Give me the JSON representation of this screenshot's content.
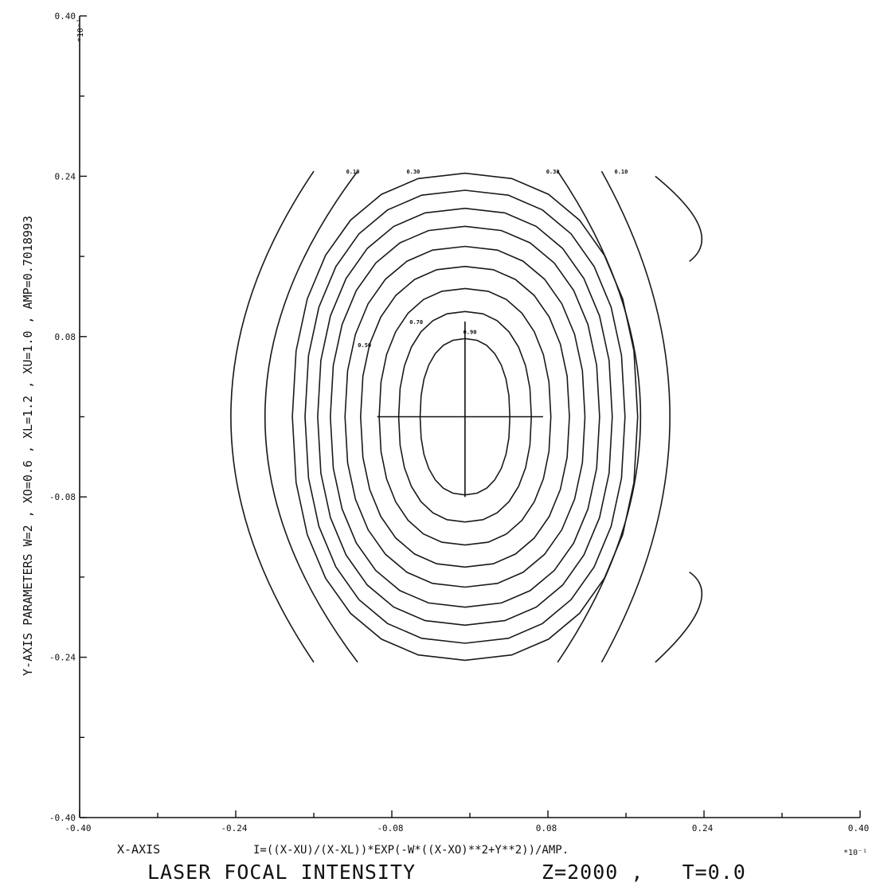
{
  "chart_data": {
    "type": "contour",
    "title": "LASER FOCAL INTENSITY",
    "title_params": "Z=2000 ,   T=0.0",
    "xlabel": "X-AXIS",
    "ylabel": "Y-AXIS PARAMETERS W=2 , XO=0.6 , XL=1.2 , XU=1.0 , AMP=0.7018993",
    "formula": "I=((X-XU)/(X-XL))*EXP(-W*((X-XO)**2+Y**2))/AMP.",
    "x_exponent": "*10⁻¹",
    "y_exponent": "*10⁻¹",
    "xlim": [
      -0.4,
      0.4
    ],
    "ylim": [
      -0.4,
      0.4
    ],
    "x_ticks": [
      -0.4,
      -0.24,
      -0.08,
      0.08,
      0.24,
      0.4
    ],
    "y_ticks": [
      -0.4,
      -0.24,
      -0.08,
      0.08,
      0.24,
      0.4
    ],
    "x_tick_labels": [
      "-0.40",
      "-0.24",
      "-0.08",
      "0.08",
      "0.24",
      "0.40"
    ],
    "y_tick_labels": [
      "-0.40",
      "-0.24",
      "-0.08",
      "0.08",
      "0.24",
      "0.40"
    ],
    "x_minor_ticks": [
      -0.32,
      -0.16,
      0.0,
      0.16,
      0.32
    ],
    "y_minor_ticks": [
      -0.32,
      -0.16,
      0.0,
      0.16,
      0.32
    ],
    "peak": [
      -0.005,
      0.0
    ],
    "cross_arms": {
      "x": [
        -0.095,
        0.075
      ],
      "y": [
        -0.08,
        0.095
      ]
    },
    "closed_contours": [
      {
        "cx": -0.005,
        "cy": 0.0,
        "rx": 0.046,
        "ry": 0.078
      },
      {
        "cx": -0.005,
        "cy": 0.0,
        "rx": 0.068,
        "ry": 0.105
      },
      {
        "cx": -0.005,
        "cy": 0.0,
        "rx": 0.088,
        "ry": 0.128
      },
      {
        "cx": -0.005,
        "cy": 0.0,
        "rx": 0.107,
        "ry": 0.15
      },
      {
        "cx": -0.005,
        "cy": 0.0,
        "rx": 0.123,
        "ry": 0.17
      },
      {
        "cx": -0.005,
        "cy": 0.0,
        "rx": 0.138,
        "ry": 0.19
      },
      {
        "cx": -0.005,
        "cy": 0.0,
        "rx": 0.151,
        "ry": 0.208
      },
      {
        "cx": -0.005,
        "cy": 0.0,
        "rx": 0.164,
        "ry": 0.226
      },
      {
        "cx": -0.005,
        "cy": 0.0,
        "rx": 0.177,
        "ry": 0.243
      }
    ],
    "open_contours": [
      {
        "side": "left",
        "top": [
          -0.16,
          0.245
        ],
        "mid": [
          -0.245,
          0.0
        ],
        "bottom": [
          -0.16,
          -0.245
        ]
      },
      {
        "side": "left",
        "top": [
          -0.115,
          0.245
        ],
        "mid": [
          -0.21,
          0.0
        ],
        "bottom": [
          -0.115,
          -0.245
        ]
      },
      {
        "side": "right",
        "top": [
          0.09,
          0.245
        ],
        "mid": [
          0.175,
          0.0
        ],
        "bottom": [
          0.09,
          -0.245
        ]
      },
      {
        "side": "right",
        "top": [
          0.135,
          0.245
        ],
        "mid": [
          0.205,
          0.0
        ],
        "bottom": [
          0.135,
          -0.245
        ]
      },
      {
        "side": "right",
        "top": [
          0.19,
          0.24
        ],
        "mid": [
          0.235,
          0.19
        ],
        "bottom": [
          0.225,
          0.155
        ]
      },
      {
        "side": "right",
        "top": [
          0.225,
          -0.155
        ],
        "mid": [
          0.235,
          -0.19
        ],
        "bottom": [
          0.19,
          -0.245
        ]
      }
    ],
    "contour_labels": [
      {
        "text": "0.10",
        "x": -0.12,
        "y": 0.245
      },
      {
        "text": "0.30",
        "x": -0.058,
        "y": 0.245
      },
      {
        "text": "0.30",
        "x": 0.085,
        "y": 0.245
      },
      {
        "text": "0.10",
        "x": 0.155,
        "y": 0.245
      },
      {
        "text": "0.70",
        "x": -0.055,
        "y": 0.095
      },
      {
        "text": "0.50",
        "x": -0.108,
        "y": 0.072
      },
      {
        "text": "0.90",
        "x": 0.0,
        "y": 0.085
      }
    ]
  }
}
